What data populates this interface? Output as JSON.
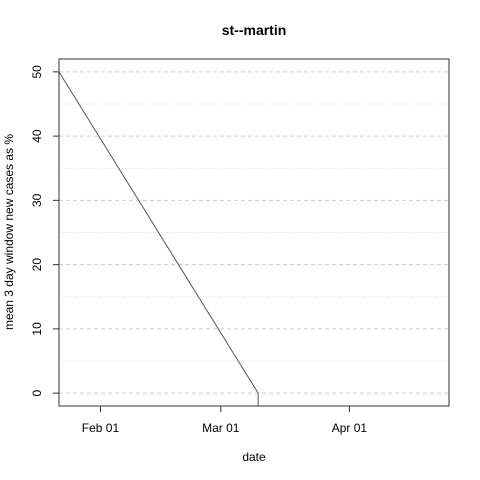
{
  "chart_data": {
    "type": "line",
    "title": "st--martin",
    "xlabel": "date",
    "ylabel": "mean  3  day window new cases as %",
    "x_ticks": [
      "2020-02-01",
      "2020-03-01",
      "2020-04-01"
    ],
    "x_tick_labels": [
      "Feb 01",
      "Mar 01",
      "Apr 01"
    ],
    "xlim": [
      "2020-01-22",
      "2020-04-25"
    ],
    "y_ticks": [
      0,
      10,
      20,
      30,
      40,
      50
    ],
    "y_tick_labels": [
      "0",
      "10",
      "20",
      "30",
      "40",
      "50"
    ],
    "ylim": [
      -2,
      52
    ],
    "grid": true,
    "series": [
      {
        "x": [
          "2020-01-22",
          "2020-03-10",
          "2020-03-10",
          "2020-04-25"
        ],
        "values": [
          50,
          0,
          -2,
          -2
        ],
        "color": "#555555"
      }
    ]
  }
}
